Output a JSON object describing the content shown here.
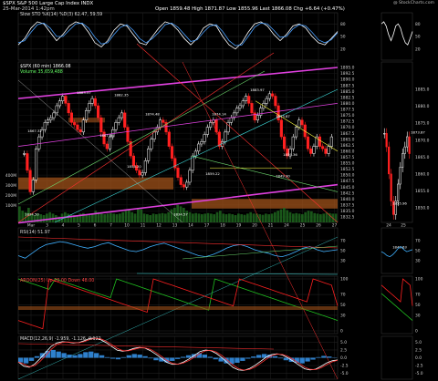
{
  "header": {
    "symbol_line": "$SPX S&P 500 Large Cap Index  INDX",
    "date_line": "25-Mar-2014 1:42pm",
    "quote": "Open 1859.48  High 1871.87  Low 1855.96  Last 1866.08  Chg +6.64 (+0.47%)",
    "stoch_label": "Slow STO %K(14) %D(3) 62.47, 59.59",
    "watermark": "@ StockCharts.com"
  },
  "price_panel": {
    "legend_main": "$SPX (60 min) 1866.08",
    "legend_vol": "Volume 35,659,488",
    "annotations": [
      "1867.32",
      "1883.57",
      "1882.35",
      "1874.48",
      "1867.66",
      "1854.20",
      "1874.14",
      "1883.97",
      "1873.87",
      "1859.22",
      "1849.30",
      "1859.36",
      "1834.50",
      "1834.57",
      "1873.87",
      "1855.96",
      "1849.63"
    ]
  },
  "panels": {
    "rsi_label": "RSI(14) 51.97",
    "aroon_label": "AROON(25)  Up 20.00  Down 48.00",
    "macd_label": "MACD(12,26,9) -1.959, -1.126, 0.122"
  },
  "chart_data": {
    "type": "candlestick-multi-panel",
    "title": "$SPX S&P 500 Large Cap Index",
    "subtitle": "60 min",
    "x_ticks_main": [
      "Mar",
      "3",
      "4",
      "5",
      "6",
      "7",
      "10",
      "11",
      "12",
      "13",
      "14",
      "17",
      "18",
      "19",
      "20",
      "21",
      "24",
      "25",
      "26",
      "27"
    ],
    "x_ticks_right": [
      "24",
      "25"
    ],
    "price_axis": [
      "1895.0",
      "1892.5",
      "1890.0",
      "1887.5",
      "1885.0",
      "1882.5",
      "1880.0",
      "1877.5",
      "1875.0",
      "1872.5",
      "1870.0",
      "1867.5",
      "1865.0",
      "1862.5",
      "1860.0",
      "1857.5",
      "1855.0",
      "1852.5",
      "1850.0",
      "1847.5",
      "1845.0",
      "1842.5",
      "1840.0",
      "1837.5",
      "1835.0",
      "1832.5"
    ],
    "right_price_axis": [
      "1885.0",
      "1880.0",
      "1875.0",
      "1870.0",
      "1865.0",
      "1860.0",
      "1855.0",
      "1850.0"
    ],
    "volume_axis": [
      "400M",
      "300M",
      "200M",
      "100M"
    ],
    "stoch_axis": [
      "80",
      "50",
      "20"
    ],
    "rsi_axis": [
      "70",
      "50",
      "30"
    ],
    "aroon_axis": [
      "100",
      "70",
      "50",
      "30",
      "0"
    ],
    "macd_axis": [
      "5.0",
      "2.5",
      "0.0",
      "-2.5",
      "-5.0"
    ],
    "price_ylim": [
      1832.5,
      1895.0
    ],
    "closes": [
      1859,
      1852,
      1843,
      1848,
      1861,
      1866,
      1869,
      1872,
      1873,
      1874,
      1876,
      1879,
      1881,
      1883,
      1880,
      1876,
      1872,
      1871,
      1869,
      1868,
      1873,
      1877,
      1880,
      1882,
      1879,
      1874,
      1868,
      1863,
      1861,
      1866,
      1869,
      1872,
      1874,
      1876,
      1870,
      1864,
      1858,
      1854,
      1852,
      1850,
      1851,
      1856,
      1861,
      1865,
      1868,
      1870,
      1873,
      1872,
      1868,
      1862,
      1857,
      1853,
      1849,
      1846,
      1845,
      1847,
      1852,
      1858,
      1860,
      1863,
      1864,
      1867,
      1870,
      1872,
      1873,
      1868,
      1862,
      1864,
      1868,
      1872,
      1874,
      1876,
      1878,
      1879,
      1881,
      1883,
      1880,
      1876,
      1873,
      1875,
      1878,
      1880,
      1882,
      1884,
      1883,
      1879,
      1873,
      1866,
      1861,
      1858,
      1861,
      1866,
      1870,
      1873,
      1871,
      1866,
      1861,
      1859,
      1862,
      1866,
      1862,
      1861,
      1859,
      1862,
      1866
    ],
    "right_closes": [
      1872,
      1868,
      1860,
      1852,
      1848,
      1852,
      1857,
      1862,
      1866,
      1868,
      1871,
      1866
    ],
    "volumes": [
      0.55,
      0.4,
      0.35,
      0.5,
      0.3,
      0.25,
      0.3,
      0.28,
      0.25,
      0.3,
      0.35,
      0.3,
      0.25,
      0.2,
      0.3,
      0.35,
      0.3,
      0.28,
      0.25,
      0.22,
      0.3,
      0.32,
      0.28,
      0.25,
      0.3,
      0.4,
      0.35,
      0.3,
      0.28,
      0.3,
      0.32,
      0.3,
      0.28,
      0.3,
      0.35,
      0.4,
      0.45,
      0.35,
      0.3,
      0.5,
      0.45,
      0.3,
      0.28,
      0.25,
      0.3,
      0.28,
      0.3,
      0.32,
      0.3,
      0.35,
      0.45,
      0.5,
      0.6,
      0.55,
      0.5,
      0.4,
      0.35,
      0.3,
      0.32,
      0.3,
      0.28,
      0.3,
      0.32,
      0.3,
      0.28,
      0.35,
      0.4,
      0.3,
      0.28,
      0.3,
      0.28,
      0.25,
      0.3,
      0.28,
      0.26,
      0.3,
      0.35,
      0.3,
      0.3,
      0.28,
      0.26,
      0.3,
      0.28,
      0.3,
      0.35,
      0.4,
      0.45,
      0.5,
      0.42,
      0.35,
      0.3,
      0.32,
      0.3,
      0.28,
      0.35,
      0.4,
      0.38,
      0.32,
      0.3,
      0.28,
      0.3,
      0.35,
      0.32,
      0.3,
      0.3
    ],
    "stoch_k": [
      30,
      45,
      70,
      85,
      80,
      60,
      40,
      55,
      75,
      85,
      80,
      60,
      35,
      25,
      40,
      65,
      80,
      75,
      55,
      35,
      30,
      50,
      70,
      85,
      80,
      65,
      45,
      30,
      45,
      70,
      80,
      75,
      50,
      30,
      20,
      35,
      60,
      80,
      85,
      75,
      55,
      40,
      55,
      75,
      80,
      70,
      50,
      35,
      30,
      45,
      62
    ],
    "stoch_d": [
      35,
      40,
      60,
      78,
      82,
      70,
      50,
      50,
      65,
      80,
      82,
      70,
      48,
      32,
      35,
      55,
      72,
      78,
      65,
      45,
      35,
      45,
      60,
      78,
      82,
      72,
      55,
      38,
      42,
      60,
      75,
      78,
      62,
      40,
      28,
      30,
      50,
      72,
      82,
      80,
      65,
      48,
      50,
      68,
      78,
      75,
      60,
      42,
      35,
      42,
      59
    ],
    "rsi": [
      40,
      35,
      45,
      55,
      62,
      65,
      68,
      66,
      62,
      58,
      55,
      58,
      63,
      66,
      60,
      55,
      50,
      48,
      52,
      58,
      62,
      65,
      60,
      55,
      50,
      45,
      40,
      38,
      42,
      48,
      55,
      60,
      62,
      58,
      52,
      48,
      45,
      40,
      38,
      42,
      48,
      55,
      58,
      52,
      48,
      50,
      52
    ],
    "macd_hist": [
      -1.5,
      -1.8,
      -1,
      0.5,
      1.5,
      2.2,
      2.5,
      2,
      1.5,
      1,
      0.8,
      1.2,
      1.8,
      2,
      1.5,
      0.8,
      0.2,
      -0.3,
      -0.5,
      0.2,
      0.8,
      1.2,
      1,
      0.5,
      -0.2,
      -0.8,
      -1.2,
      -1.5,
      -1,
      -0.4,
      0.3,
      0.8,
      1.2,
      1.5,
      1,
      0.3,
      -0.5,
      -1.2,
      -1.8,
      -2,
      -1.6,
      -1,
      -0.3,
      0.4,
      0.9,
      1.2,
      1,
      0.5,
      -0.2,
      -0.8,
      -1.3,
      -1.6,
      -1.8,
      -1.2,
      -0.6,
      0.2,
      0.6,
      0.4,
      0.1
    ],
    "aroon_up": [
      100,
      96,
      92,
      88,
      84,
      80,
      100,
      96,
      92,
      88,
      84,
      80,
      76,
      72,
      68,
      64,
      100,
      96,
      92,
      88,
      84,
      80,
      76,
      72,
      68,
      64,
      60,
      56,
      52,
      48,
      44,
      40,
      100,
      96,
      92,
      88,
      84,
      80,
      76,
      72,
      68,
      64,
      60,
      56,
      52,
      48,
      44,
      40,
      36,
      32,
      28,
      24,
      20
    ],
    "aroon_down": [
      20,
      16,
      12,
      8,
      4,
      100,
      96,
      92,
      88,
      84,
      80,
      76,
      72,
      68,
      64,
      60,
      56,
      52,
      48,
      44,
      40,
      36,
      100,
      96,
      92,
      88,
      84,
      80,
      76,
      72,
      68,
      64,
      60,
      56,
      52,
      48,
      100,
      96,
      92,
      88,
      84,
      80,
      76,
      72,
      68,
      64,
      60,
      56,
      100,
      96,
      92,
      88,
      48
    ]
  }
}
